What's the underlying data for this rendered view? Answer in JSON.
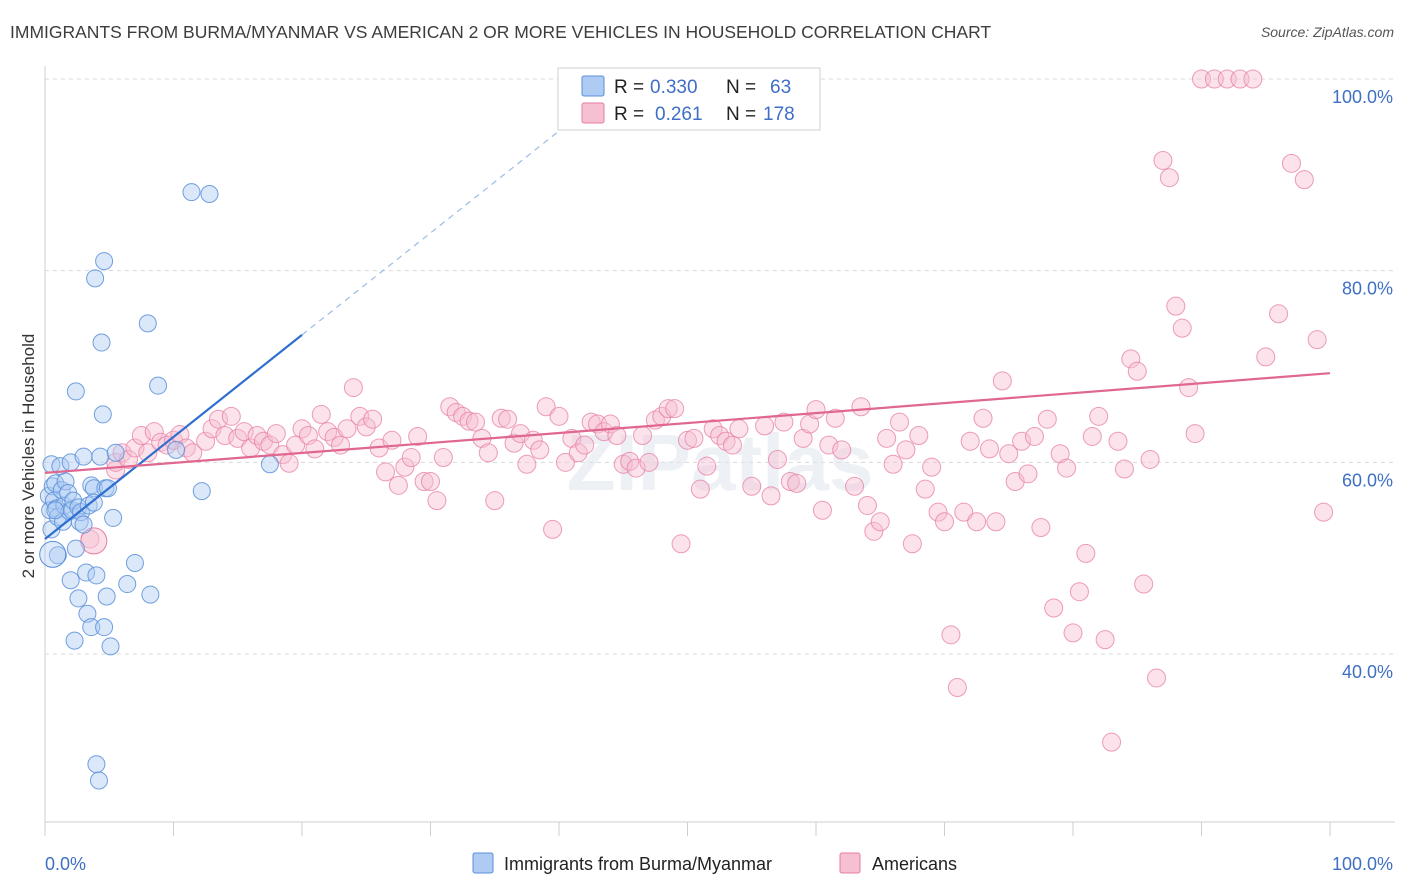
{
  "title": "IMMIGRANTS FROM BURMA/MYANMAR VS AMERICAN 2 OR MORE VEHICLES IN HOUSEHOLD CORRELATION CHART",
  "source": "Source: ZipAtlas.com",
  "watermark": "ZIPatlas",
  "colors": {
    "blue": "#5b8fd9",
    "blue_fill": "#aecbf3",
    "blue_line": "#2f6fcf",
    "pink": "#e77da3",
    "pink_fill": "#f7bfd2",
    "pink_line": "#e0678f",
    "grid": "#d9d9d9",
    "label": "#3f6fc4"
  },
  "legend": {
    "rows": [
      {
        "r_label": "R =",
        "r_value": "0.330",
        "n_label": "N =",
        "n_value": "63"
      },
      {
        "r_label": "R =",
        "r_value": "0.261",
        "n_label": "N =",
        "n_value": "178"
      }
    ]
  },
  "bottom_legend": [
    "Immigrants from Burma/Myanmar",
    "Americans"
  ],
  "chart_data": {
    "type": "scatter",
    "title": "IMMIGRANTS FROM BURMA/MYANMAR VS AMERICAN 2 OR MORE VEHICLES IN HOUSEHOLD CORRELATION CHART",
    "ylabel": "2 or more Vehicles in Household",
    "xlabel": "",
    "x_tick_labels": [
      "0.0%",
      "100.0%"
    ],
    "y_tick_labels": [
      "40.0%",
      "60.0%",
      "80.0%",
      "100.0%"
    ],
    "y_ticks": [
      40,
      60,
      80,
      100
    ],
    "xlim": [
      0,
      100
    ],
    "ylim": [
      23,
      102
    ],
    "grid": "horizontal dashed",
    "legend_position": "top-center",
    "series": [
      {
        "name": "Immigrants from Burma/Myanmar",
        "color": "blue",
        "R": 0.33,
        "N": 63,
        "trend": {
          "x": [
            0,
            20
          ],
          "y": [
            52.0,
            73.3
          ],
          "dashed_to": [
            42,
            96.7
          ]
        },
        "points": [
          [
            0.3,
            56.5
          ],
          [
            0.4,
            55
          ],
          [
            0.5,
            59.8
          ],
          [
            0.5,
            53
          ],
          [
            0.6,
            57.5
          ],
          [
            0.7,
            56
          ],
          [
            0.8,
            57.8
          ],
          [
            0.9,
            55.2
          ],
          [
            1,
            50.3
          ],
          [
            1,
            54.3
          ],
          [
            1.2,
            59.6
          ],
          [
            1.3,
            57.1
          ],
          [
            1.4,
            53.8
          ],
          [
            1.5,
            55.5
          ],
          [
            1.6,
            58
          ],
          [
            1.8,
            56.8
          ],
          [
            1.9,
            54.9
          ],
          [
            2,
            47.7
          ],
          [
            2,
            60
          ],
          [
            2.1,
            55
          ],
          [
            2.2,
            56
          ],
          [
            2.3,
            41.4
          ],
          [
            2.4,
            51
          ],
          [
            2.4,
            67.4
          ],
          [
            2.6,
            45.8
          ],
          [
            2.6,
            55.3
          ],
          [
            2.7,
            53.8
          ],
          [
            2.8,
            54.8
          ],
          [
            3,
            60.6
          ],
          [
            3,
            53.5
          ],
          [
            3.2,
            48.5
          ],
          [
            3.3,
            44.2
          ],
          [
            3.4,
            55.5
          ],
          [
            3.6,
            57.6
          ],
          [
            3.6,
            42.8
          ],
          [
            3.8,
            57.3
          ],
          [
            3.8,
            55.8
          ],
          [
            3.9,
            79.2
          ],
          [
            4,
            28.5
          ],
          [
            4,
            48.2
          ],
          [
            4.2,
            26.8
          ],
          [
            4.3,
            60.6
          ],
          [
            4.4,
            72.5
          ],
          [
            4.5,
            65
          ],
          [
            4.6,
            81
          ],
          [
            4.6,
            42.8
          ],
          [
            4.7,
            57.3
          ],
          [
            4.8,
            46
          ],
          [
            4.9,
            57.3
          ],
          [
            5.1,
            40.8
          ],
          [
            5.3,
            54.2
          ],
          [
            5.5,
            61
          ],
          [
            6.4,
            47.3
          ],
          [
            7,
            49.5
          ],
          [
            8,
            74.5
          ],
          [
            8.2,
            46.2
          ],
          [
            8.8,
            68
          ],
          [
            10.2,
            61.3
          ],
          [
            11.4,
            88.2
          ],
          [
            12.2,
            57
          ],
          [
            12.8,
            88
          ],
          [
            17.5,
            59.8
          ],
          [
            0.8,
            55
          ]
        ]
      },
      {
        "name": "Americans",
        "color": "pink",
        "R": 0.261,
        "N": 178,
        "trend": {
          "x": [
            0,
            100
          ],
          "y": [
            58.9,
            69.3
          ]
        },
        "points": [
          [
            3.5,
            52
          ],
          [
            5.5,
            59.2
          ],
          [
            5.5,
            60
          ],
          [
            6,
            61
          ],
          [
            6.5,
            60.3
          ],
          [
            7,
            61.5
          ],
          [
            7.5,
            62.8
          ],
          [
            8,
            61
          ],
          [
            8.5,
            63.2
          ],
          [
            9,
            62.1
          ],
          [
            9.5,
            61.8
          ],
          [
            10,
            62.3
          ],
          [
            10.5,
            62.9
          ],
          [
            11,
            61.5
          ],
          [
            11.5,
            61
          ],
          [
            12.5,
            62.2
          ],
          [
            13,
            63.5
          ],
          [
            13.5,
            64.5
          ],
          [
            14,
            62.8
          ],
          [
            14.5,
            64.8
          ],
          [
            15,
            62.5
          ],
          [
            15.5,
            63.2
          ],
          [
            16,
            61.5
          ],
          [
            16.5,
            62.8
          ],
          [
            17,
            62.2
          ],
          [
            17.5,
            61.8
          ],
          [
            18,
            63
          ],
          [
            18.5,
            60.8
          ],
          [
            19,
            59.9
          ],
          [
            19.5,
            61.8
          ],
          [
            20,
            63.5
          ],
          [
            20.5,
            62.8
          ],
          [
            21,
            61.4
          ],
          [
            21.5,
            65
          ],
          [
            22,
            63.2
          ],
          [
            22.5,
            62.6
          ],
          [
            23,
            61.8
          ],
          [
            23.5,
            63.5
          ],
          [
            24,
            67.8
          ],
          [
            24.5,
            64.8
          ],
          [
            25,
            63.7
          ],
          [
            25.5,
            64.5
          ],
          [
            26,
            61.5
          ],
          [
            26.5,
            59
          ],
          [
            27,
            62.3
          ],
          [
            27.5,
            57.6
          ],
          [
            28,
            59.5
          ],
          [
            28.5,
            60.5
          ],
          [
            29,
            62.7
          ],
          [
            29.5,
            58
          ],
          [
            30,
            58
          ],
          [
            30.5,
            56
          ],
          [
            31,
            60.5
          ],
          [
            31.5,
            65.8
          ],
          [
            32,
            65.2
          ],
          [
            32.5,
            64.8
          ],
          [
            33,
            64.3
          ],
          [
            33.5,
            64.2
          ],
          [
            34,
            62.5
          ],
          [
            34.5,
            61
          ],
          [
            35,
            56
          ],
          [
            35.5,
            64.6
          ],
          [
            36,
            64.5
          ],
          [
            36.5,
            62
          ],
          [
            37,
            63
          ],
          [
            37.5,
            59.8
          ],
          [
            38,
            62.3
          ],
          [
            38.5,
            61.3
          ],
          [
            39,
            65.8
          ],
          [
            39.5,
            53
          ],
          [
            40,
            64.8
          ],
          [
            40.5,
            60
          ],
          [
            41,
            62.5
          ],
          [
            41.5,
            61
          ],
          [
            42,
            61.8
          ],
          [
            42.5,
            64.2
          ],
          [
            43,
            64
          ],
          [
            43.5,
            63.2
          ],
          [
            44,
            64
          ],
          [
            44.5,
            62.8
          ],
          [
            45,
            59.8
          ],
          [
            45.5,
            60.1
          ],
          [
            46,
            59.4
          ],
          [
            46.5,
            62.8
          ],
          [
            47,
            60
          ],
          [
            47.5,
            64.4
          ],
          [
            48,
            64.8
          ],
          [
            48.5,
            65.6
          ],
          [
            49,
            65.6
          ],
          [
            49.5,
            51.5
          ],
          [
            50,
            62.3
          ],
          [
            50.5,
            62.5
          ],
          [
            51,
            57.2
          ],
          [
            51.5,
            59.6
          ],
          [
            52,
            63.5
          ],
          [
            52.5,
            62.8
          ],
          [
            53,
            62.2
          ],
          [
            53.5,
            61.8
          ],
          [
            54,
            63.5
          ],
          [
            55,
            57.5
          ],
          [
            56,
            63.8
          ],
          [
            56.5,
            56.5
          ],
          [
            57,
            60.3
          ],
          [
            57.5,
            64.2
          ],
          [
            58,
            58
          ],
          [
            58.5,
            57.8
          ],
          [
            59,
            62.5
          ],
          [
            59.5,
            64
          ],
          [
            60,
            65.5
          ],
          [
            60.5,
            55
          ],
          [
            61,
            61.8
          ],
          [
            61.5,
            64.6
          ],
          [
            62,
            61.3
          ],
          [
            63,
            57.5
          ],
          [
            63.5,
            65.8
          ],
          [
            64,
            55.5
          ],
          [
            64.5,
            52.8
          ],
          [
            65,
            53.8
          ],
          [
            65.5,
            62.5
          ],
          [
            66,
            59.8
          ],
          [
            66.5,
            64.2
          ],
          [
            67,
            61.3
          ],
          [
            67.5,
            51.5
          ],
          [
            68,
            62.8
          ],
          [
            68.5,
            57.2
          ],
          [
            69,
            59.5
          ],
          [
            69.5,
            54.8
          ],
          [
            70,
            53.8
          ],
          [
            70.5,
            42
          ],
          [
            71,
            36.5
          ],
          [
            71.5,
            54.8
          ],
          [
            72,
            62.2
          ],
          [
            72.5,
            53.8
          ],
          [
            73,
            64.6
          ],
          [
            73.5,
            61.4
          ],
          [
            74,
            53.8
          ],
          [
            74.5,
            68.5
          ],
          [
            75,
            60.9
          ],
          [
            75.5,
            58
          ],
          [
            76,
            62.2
          ],
          [
            76.5,
            58.8
          ],
          [
            77,
            62.7
          ],
          [
            77.5,
            53.2
          ],
          [
            78,
            64.5
          ],
          [
            78.5,
            44.8
          ],
          [
            79,
            60.9
          ],
          [
            79.5,
            59.4
          ],
          [
            80,
            42.2
          ],
          [
            80.5,
            46.5
          ],
          [
            81,
            50.5
          ],
          [
            81.5,
            62.7
          ],
          [
            82,
            64.8
          ],
          [
            82.5,
            41.5
          ],
          [
            83,
            30.8
          ],
          [
            83.5,
            62.2
          ],
          [
            84,
            59.3
          ],
          [
            84.5,
            70.8
          ],
          [
            85,
            69.5
          ],
          [
            85.5,
            47.3
          ],
          [
            86,
            60.3
          ],
          [
            86.5,
            37.5
          ],
          [
            87,
            91.5
          ],
          [
            87.5,
            89.7
          ],
          [
            88,
            76.3
          ],
          [
            88.5,
            74
          ],
          [
            89,
            67.8
          ],
          [
            89.5,
            63
          ],
          [
            90,
            100
          ],
          [
            91,
            100
          ],
          [
            92,
            100
          ],
          [
            93,
            100
          ],
          [
            94,
            100
          ],
          [
            95,
            71
          ],
          [
            96,
            75.5
          ],
          [
            97,
            91.2
          ],
          [
            98,
            89.5
          ],
          [
            99,
            72.8
          ],
          [
            99.5,
            54.8
          ]
        ]
      }
    ]
  }
}
